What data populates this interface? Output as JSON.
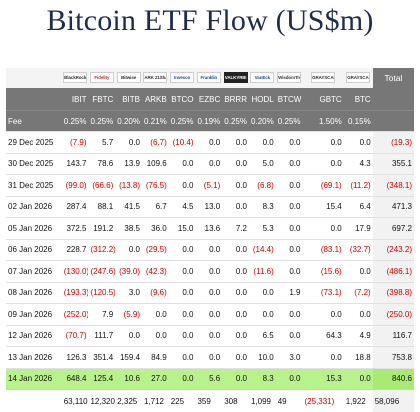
{
  "title": "Bitcoin ETF Flow (US$m)",
  "colors": {
    "negative": "#cc0000",
    "header_bg": "#777777",
    "highlight_row": "#b8f28c",
    "title": "#1f2d4d"
  },
  "logos": [
    "BlackRock",
    "Fidelity",
    "Bitwise",
    "ARK 21Shares",
    "Invesco",
    "Franklin",
    "VALKYRIE",
    "VanEck",
    "WisdomTree",
    "GRAYSCALE",
    "GRAYSCALE"
  ],
  "header": {
    "total_label": "Total",
    "fee_label": "Fee",
    "tickers": [
      "IBIT",
      "FBTC",
      "BITB",
      "ARKB",
      "BTCO",
      "EZBC",
      "BRRR",
      "HODL",
      "BTCW",
      "GBTC",
      "BTC"
    ],
    "fees": [
      "0.25%",
      "0.25%",
      "0.20%",
      "0.21%",
      "0.25%",
      "0.19%",
      "0.25%",
      "0.20%",
      "0.25%",
      "1.50%",
      "0.15%"
    ]
  },
  "chart_data": {
    "type": "table",
    "title": "Bitcoin ETF Flow (US$m)",
    "columns": [
      "IBIT",
      "FBTC",
      "BITB",
      "ARKB",
      "BTCO",
      "EZBC",
      "BRRR",
      "HODL",
      "BTCW",
      "GBTC",
      "BTC",
      "Total"
    ],
    "rows": [
      {
        "date": "29 Dec 2025",
        "values": [
          "(7.9)",
          "5.7",
          "0.0",
          "(6.7)",
          "(10.4)",
          "0.0",
          "0.0",
          "0.0",
          "0.0",
          "0.0",
          "0.0",
          "(19.3)"
        ]
      },
      {
        "date": "30 Dec 2025",
        "values": [
          "143.7",
          "78.6",
          "13.9",
          "109.6",
          "0.0",
          "0.0",
          "0.0",
          "5.0",
          "0.0",
          "0.0",
          "4.3",
          "355.1"
        ]
      },
      {
        "date": "31 Dec 2025",
        "values": [
          "(99.0)",
          "(66.6)",
          "(13.8)",
          "(76.5)",
          "0.0",
          "(5.1)",
          "0.0",
          "(6.8)",
          "0.0",
          "(69.1)",
          "(11.2)",
          "(348.1)"
        ]
      },
      {
        "date": "02 Jan 2026",
        "values": [
          "287.4",
          "88.1",
          "41.5",
          "6.7",
          "4.5",
          "13.0",
          "0.0",
          "8.3",
          "0.0",
          "15.4",
          "6.4",
          "471.3"
        ]
      },
      {
        "date": "05 Jan 2026",
        "values": [
          "372.5",
          "191.2",
          "38.5",
          "36.0",
          "15.0",
          "13.6",
          "7.2",
          "5.3",
          "0.0",
          "0.0",
          "17.9",
          "697.2"
        ]
      },
      {
        "date": "06 Jan 2026",
        "values": [
          "228.7",
          "(312.2)",
          "0.0",
          "(29.5)",
          "0.0",
          "0.0",
          "0.0",
          "(14.4)",
          "0.0",
          "(83.1)",
          "(32.7)",
          "(243.2)"
        ]
      },
      {
        "date": "07 Jan 2026",
        "values": [
          "(130.0)",
          "(247.6)",
          "(39.0)",
          "(42.3)",
          "0.0",
          "0.0",
          "0.0",
          "(11.6)",
          "0.0",
          "(15.6)",
          "0.0",
          "(486.1)"
        ]
      },
      {
        "date": "08 Jan 2026",
        "values": [
          "(193.3)",
          "(120.5)",
          "3.0",
          "(9.6)",
          "0.0",
          "0.0",
          "0.0",
          "0.0",
          "1.9",
          "(73.1)",
          "(7.2)",
          "(398.8)"
        ]
      },
      {
        "date": "09 Jan 2026",
        "values": [
          "(252.0)",
          "7.9",
          "(5.9)",
          "0.0",
          "0.0",
          "0.0",
          "0.0",
          "0.0",
          "0.0",
          "0.0",
          "0.0",
          "(250.0)"
        ]
      },
      {
        "date": "12 Jan 2026",
        "values": [
          "(70.7)",
          "111.7",
          "0.0",
          "0.0",
          "0.0",
          "0.0",
          "0.0",
          "6.5",
          "0.0",
          "64.3",
          "4.9",
          "116.7"
        ]
      },
      {
        "date": "13 Jan 2026",
        "values": [
          "126.3",
          "351.4",
          "159.4",
          "84.9",
          "0.0",
          "0.0",
          "0.0",
          "10.0",
          "3.0",
          "0.0",
          "18.8",
          "753.8"
        ]
      },
      {
        "date": "14 Jan 2026",
        "values": [
          "648.4",
          "125.4",
          "10.6",
          "27.0",
          "0.0",
          "5.6",
          "0.0",
          "8.3",
          "0.0",
          "15.3",
          "0.0",
          "840.6"
        ],
        "highlighted": true
      }
    ],
    "totals": [
      "63,110",
      "12,320",
      "2,325",
      "1,712",
      "225",
      "359",
      "308",
      "1,099",
      "49",
      "(25,331)",
      "1,922",
      "58,096"
    ]
  }
}
